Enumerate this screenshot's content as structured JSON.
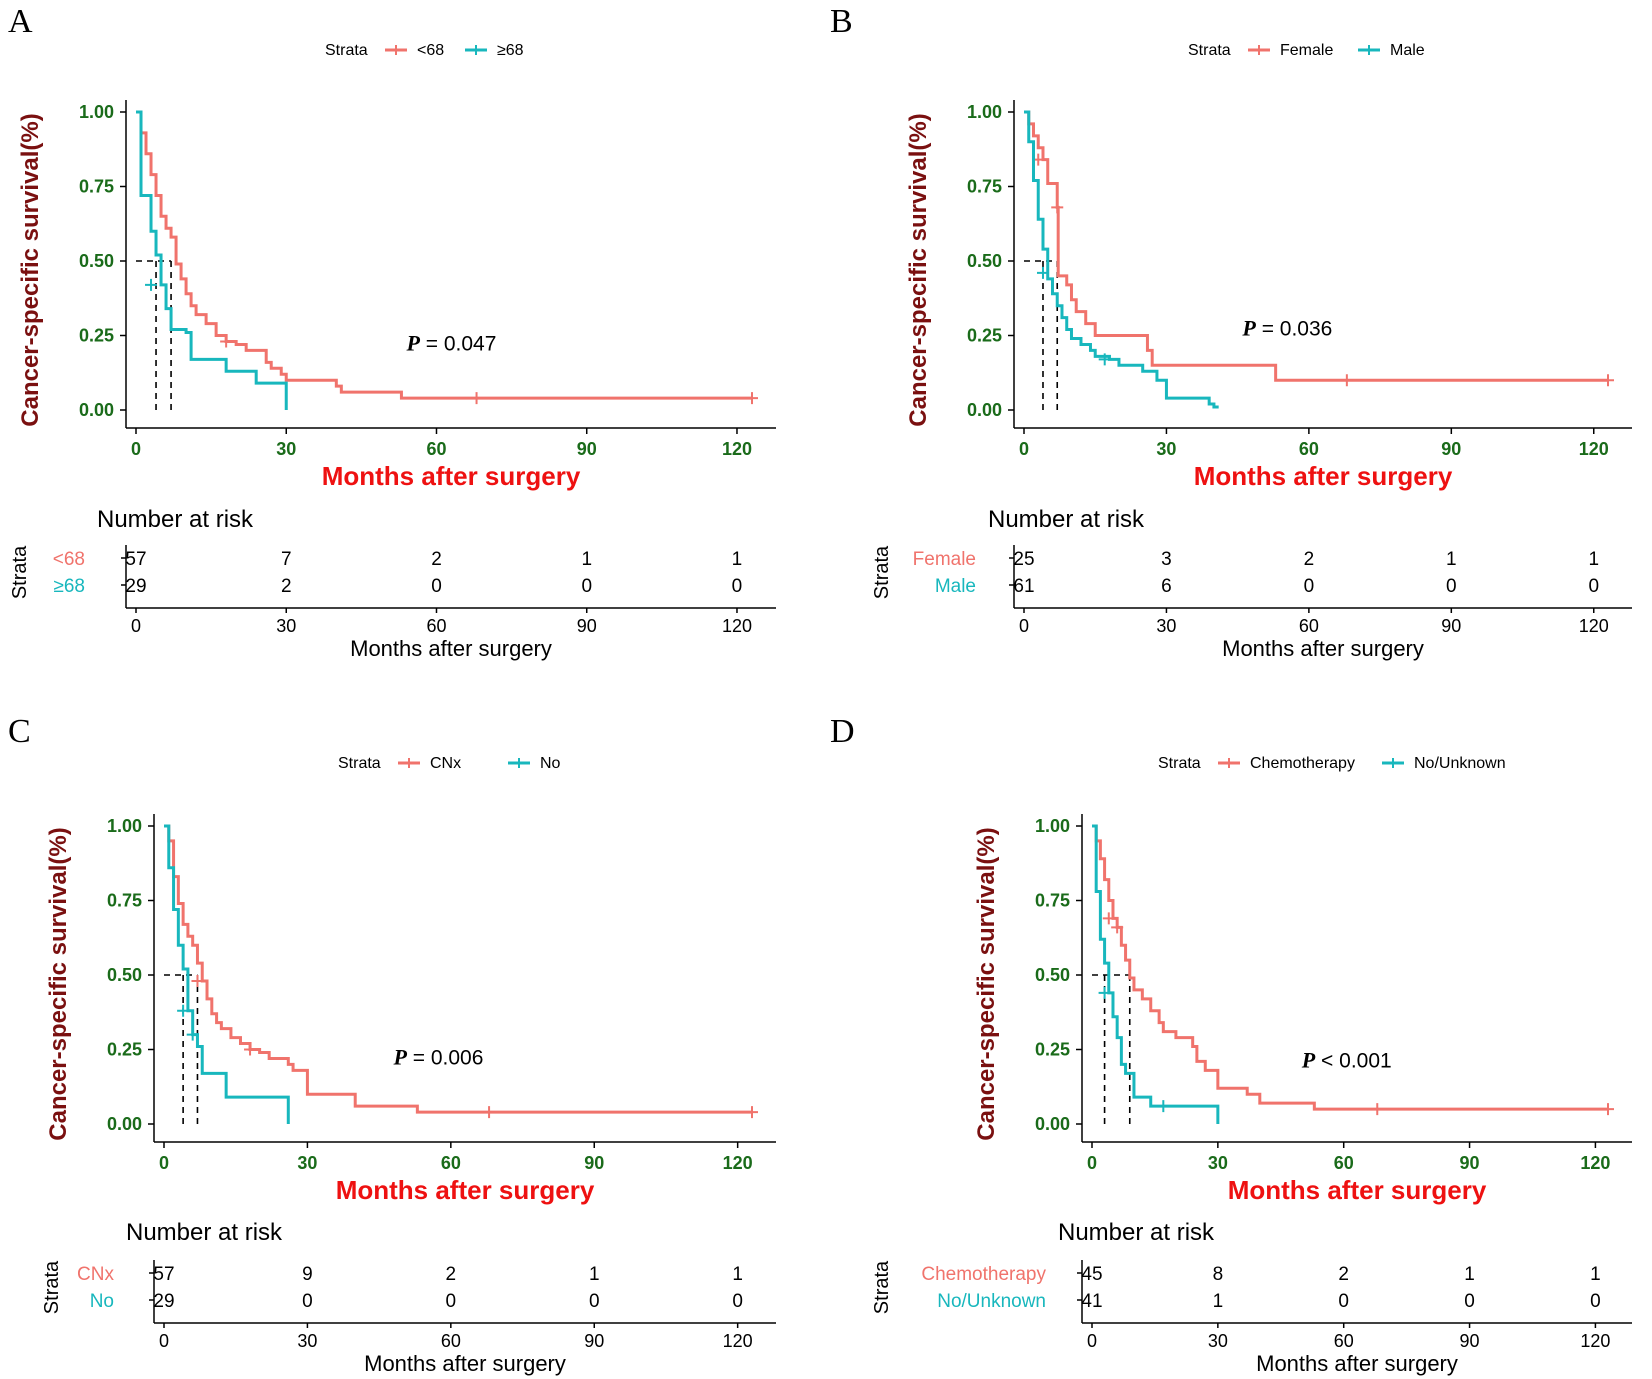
{
  "colors": {
    "red": "#F0736C",
    "cyan": "#18B7BD"
  },
  "chart_data": [
    {
      "type": "line",
      "panel": "A",
      "legend_title": "Strata",
      "ylabel": "Cancer-specific survival(%)",
      "xlabel": "Months after surgery",
      "xticks": [
        0,
        30,
        60,
        90,
        120
      ],
      "yticks": [
        "0.00",
        "0.25",
        "0.50",
        "0.75",
        "1.00"
      ],
      "xlim": [
        0,
        123
      ],
      "ylim": [
        0,
        1
      ],
      "p_label": "P",
      "p_text": "= 0.047",
      "p_pos": [
        54,
        0.2
      ],
      "medians": [
        4,
        7
      ],
      "series": [
        {
          "name": "<68",
          "color": "#F0736C",
          "steps": [
            [
              0,
              1
            ],
            [
              1,
              0.93
            ],
            [
              2,
              0.86
            ],
            [
              3,
              0.79
            ],
            [
              4,
              0.72
            ],
            [
              5,
              0.65
            ],
            [
              6,
              0.61
            ],
            [
              7,
              0.58
            ],
            [
              8,
              0.49
            ],
            [
              9,
              0.44
            ],
            [
              10,
              0.39
            ],
            [
              11,
              0.35
            ],
            [
              12,
              0.32
            ],
            [
              14,
              0.29
            ],
            [
              16,
              0.25
            ],
            [
              18,
              0.23
            ],
            [
              20,
              0.22
            ],
            [
              22,
              0.2
            ],
            [
              26,
              0.16
            ],
            [
              27,
              0.14
            ],
            [
              29,
              0.12
            ],
            [
              30,
              0.1
            ],
            [
              40,
              0.08
            ],
            [
              41,
              0.06
            ],
            [
              53,
              0.04
            ],
            [
              123,
              0.04
            ]
          ],
          "censors": [
            [
              18,
              0.23
            ],
            [
              68,
              0.04
            ],
            [
              123,
              0.04
            ]
          ]
        },
        {
          "name": "≥68",
          "color": "#18B7BD",
          "steps": [
            [
              0,
              1
            ],
            [
              1,
              0.72
            ],
            [
              3,
              0.6
            ],
            [
              4,
              0.52
            ],
            [
              5,
              0.42
            ],
            [
              6,
              0.34
            ],
            [
              7,
              0.27
            ],
            [
              10,
              0.26
            ],
            [
              11,
              0.17
            ],
            [
              17,
              0.17
            ],
            [
              18,
              0.13
            ],
            [
              24,
              0.09
            ],
            [
              30,
              0
            ],
            [
              30,
              0
            ]
          ],
          "censors": [
            [
              3,
              0.42
            ]
          ]
        }
      ],
      "risk": {
        "title": "Number at risk",
        "ylab": "Strata",
        "xlabel": "Months after surgery",
        "xticks": [
          0,
          30,
          60,
          90,
          120
        ],
        "rows": [
          {
            "label": "<68",
            "color": "#F0736C",
            "values": [
              "57",
              "7",
              "2",
              "1",
              "1"
            ]
          },
          {
            "label": "≥68",
            "color": "#18B7BD",
            "values": [
              "29",
              "2",
              "0",
              "0",
              "0"
            ]
          }
        ]
      }
    },
    {
      "type": "line",
      "panel": "B",
      "legend_title": "Strata",
      "ylabel": "Cancer-specific survival(%)",
      "xlabel": "Months after surgery",
      "xticks": [
        0,
        30,
        60,
        90,
        120
      ],
      "yticks": [
        "0.00",
        "0.25",
        "0.50",
        "0.75",
        "1.00"
      ],
      "xlim": [
        0,
        123
      ],
      "ylim": [
        0,
        1
      ],
      "p_label": "P",
      "p_text": "= 0.036",
      "p_pos": [
        46,
        0.25
      ],
      "medians": [
        4,
        7
      ],
      "series": [
        {
          "name": "Female",
          "color": "#F0736C",
          "steps": [
            [
              0,
              1
            ],
            [
              1,
              0.96
            ],
            [
              2,
              0.92
            ],
            [
              3,
              0.88
            ],
            [
              4,
              0.84
            ],
            [
              5,
              0.76
            ],
            [
              7,
              0.68
            ],
            [
              7.2,
              0.45
            ],
            [
              9,
              0.42
            ],
            [
              10,
              0.37
            ],
            [
              11,
              0.33
            ],
            [
              13,
              0.29
            ],
            [
              15,
              0.25
            ],
            [
              26,
              0.2
            ],
            [
              27,
              0.15
            ],
            [
              53,
              0.1
            ],
            [
              123,
              0.1
            ]
          ],
          "censors": [
            [
              3,
              0.84
            ],
            [
              7,
              0.68
            ],
            [
              68,
              0.1
            ],
            [
              123,
              0.1
            ]
          ]
        },
        {
          "name": "Male",
          "color": "#18B7BD",
          "steps": [
            [
              0,
              1
            ],
            [
              1,
              0.9
            ],
            [
              2,
              0.77
            ],
            [
              3,
              0.64
            ],
            [
              4,
              0.54
            ],
            [
              5,
              0.44
            ],
            [
              6,
              0.39
            ],
            [
              7,
              0.35
            ],
            [
              8,
              0.31
            ],
            [
              9,
              0.27
            ],
            [
              10,
              0.24
            ],
            [
              12,
              0.22
            ],
            [
              14,
              0.2
            ],
            [
              15,
              0.18
            ],
            [
              18,
              0.17
            ],
            [
              20,
              0.15
            ],
            [
              25,
              0.13
            ],
            [
              28,
              0.1
            ],
            [
              30,
              0.04
            ],
            [
              38,
              0.04
            ],
            [
              39,
              0.02
            ],
            [
              40,
              0.01
            ],
            [
              41,
              0.01
            ]
          ],
          "censors": [
            [
              4,
              0.46
            ],
            [
              17,
              0.17
            ]
          ]
        }
      ],
      "risk": {
        "title": "Number at risk",
        "ylab": "Strata",
        "xlabel": "Months after surgery",
        "xticks": [
          0,
          30,
          60,
          90,
          120
        ],
        "rows": [
          {
            "label": "Female",
            "color": "#F0736C",
            "values": [
              "25",
              "3",
              "2",
              "1",
              "1"
            ]
          },
          {
            "label": "Male",
            "color": "#18B7BD",
            "values": [
              "61",
              "6",
              "0",
              "0",
              "0"
            ]
          }
        ]
      }
    },
    {
      "type": "line",
      "panel": "C",
      "legend_title": "Strata",
      "ylabel": "Cancer-specific survival(%)",
      "xlabel": "Months after surgery",
      "xticks": [
        0,
        30,
        60,
        90,
        120
      ],
      "yticks": [
        "0.00",
        "0.25",
        "0.50",
        "0.75",
        "1.00"
      ],
      "xlim": [
        0,
        123
      ],
      "ylim": [
        0,
        1
      ],
      "p_label": "P",
      "p_text": "= 0.006",
      "p_pos": [
        48,
        0.2
      ],
      "medians": [
        4,
        7
      ],
      "series": [
        {
          "name": "CNx",
          "color": "#F0736C",
          "steps": [
            [
              0,
              1
            ],
            [
              1,
              0.95
            ],
            [
              2,
              0.83
            ],
            [
              3,
              0.74
            ],
            [
              4,
              0.67
            ],
            [
              5,
              0.63
            ],
            [
              6,
              0.6
            ],
            [
              7,
              0.54
            ],
            [
              8,
              0.48
            ],
            [
              9,
              0.42
            ],
            [
              10,
              0.37
            ],
            [
              11,
              0.34
            ],
            [
              12,
              0.32
            ],
            [
              14,
              0.29
            ],
            [
              16,
              0.27
            ],
            [
              18,
              0.25
            ],
            [
              20,
              0.24
            ],
            [
              22,
              0.22
            ],
            [
              26,
              0.2
            ],
            [
              27,
              0.18
            ],
            [
              30,
              0.1
            ],
            [
              40,
              0.06
            ],
            [
              53,
              0.04
            ],
            [
              123,
              0.04
            ]
          ],
          "censors": [
            [
              7,
              0.48
            ],
            [
              18,
              0.25
            ],
            [
              68,
              0.04
            ],
            [
              123,
              0.04
            ]
          ]
        },
        {
          "name": "No",
          "color": "#18B7BD",
          "steps": [
            [
              0,
              1
            ],
            [
              1,
              0.86
            ],
            [
              2,
              0.72
            ],
            [
              3,
              0.6
            ],
            [
              4,
              0.52
            ],
            [
              5,
              0.38
            ],
            [
              6,
              0.3
            ],
            [
              7,
              0.26
            ],
            [
              8,
              0.17
            ],
            [
              13,
              0.09
            ],
            [
              26,
              0
            ],
            [
              26,
              0
            ]
          ],
          "censors": [
            [
              4,
              0.38
            ],
            [
              6,
              0.3
            ]
          ]
        }
      ],
      "risk": {
        "title": "Number at risk",
        "ylab": "Strata",
        "xlabel": "Months after surgery",
        "xticks": [
          0,
          30,
          60,
          90,
          120
        ],
        "rows": [
          {
            "label": "CNx",
            "color": "#F0736C",
            "values": [
              "57",
              "9",
              "2",
              "1",
              "1"
            ]
          },
          {
            "label": "No",
            "color": "#18B7BD",
            "values": [
              "29",
              "0",
              "0",
              "0",
              "0"
            ]
          }
        ]
      }
    },
    {
      "type": "line",
      "panel": "D",
      "legend_title": "Strata",
      "ylabel": "Cancer-specific survival(%)",
      "xlabel": "Months after surgery",
      "xticks": [
        0,
        30,
        60,
        90,
        120
      ],
      "yticks": [
        "0.00",
        "0.25",
        "0.50",
        "0.75",
        "1.00"
      ],
      "xlim": [
        0,
        123
      ],
      "ylim": [
        0,
        1
      ],
      "p_label": "P",
      "p_text": "< 0.001",
      "p_pos": [
        50,
        0.19
      ],
      "medians": [
        3,
        9
      ],
      "series": [
        {
          "name": "Chemotherapy",
          "color": "#F0736C",
          "steps": [
            [
              0,
              1
            ],
            [
              1,
              0.95
            ],
            [
              2,
              0.89
            ],
            [
              3,
              0.82
            ],
            [
              4,
              0.75
            ],
            [
              5,
              0.69
            ],
            [
              6,
              0.66
            ],
            [
              7,
              0.6
            ],
            [
              8,
              0.55
            ],
            [
              9,
              0.49
            ],
            [
              10,
              0.45
            ],
            [
              12,
              0.42
            ],
            [
              14,
              0.38
            ],
            [
              16,
              0.34
            ],
            [
              17,
              0.31
            ],
            [
              20,
              0.29
            ],
            [
              24,
              0.26
            ],
            [
              25,
              0.21
            ],
            [
              27,
              0.18
            ],
            [
              30,
              0.12
            ],
            [
              37,
              0.1
            ],
            [
              40,
              0.07
            ],
            [
              53,
              0.05
            ],
            [
              123,
              0.05
            ]
          ],
          "censors": [
            [
              4,
              0.69
            ],
            [
              6,
              0.66
            ],
            [
              68,
              0.05
            ],
            [
              123,
              0.05
            ]
          ]
        },
        {
          "name": "No/Unknown",
          "color": "#18B7BD",
          "steps": [
            [
              0,
              1
            ],
            [
              1,
              0.78
            ],
            [
              2,
              0.62
            ],
            [
              3,
              0.54
            ],
            [
              4,
              0.44
            ],
            [
              5,
              0.36
            ],
            [
              6,
              0.29
            ],
            [
              7,
              0.2
            ],
            [
              8,
              0.17
            ],
            [
              10,
              0.09
            ],
            [
              14,
              0.06
            ],
            [
              30,
              0
            ],
            [
              30,
              0
            ]
          ],
          "censors": [
            [
              3,
              0.44
            ],
            [
              17,
              0.06
            ]
          ]
        }
      ],
      "risk": {
        "title": "Number at risk",
        "ylab": "Strata",
        "xlabel": "Months after surgery",
        "xticks": [
          0,
          30,
          60,
          90,
          120
        ],
        "rows": [
          {
            "label": "Chemotherapy",
            "color": "#F0736C",
            "values": [
              "45",
              "8",
              "2",
              "1",
              "1"
            ]
          },
          {
            "label": "No/Unknown",
            "color": "#18B7BD",
            "values": [
              "41",
              "1",
              "0",
              "0",
              "0"
            ]
          }
        ]
      }
    }
  ]
}
